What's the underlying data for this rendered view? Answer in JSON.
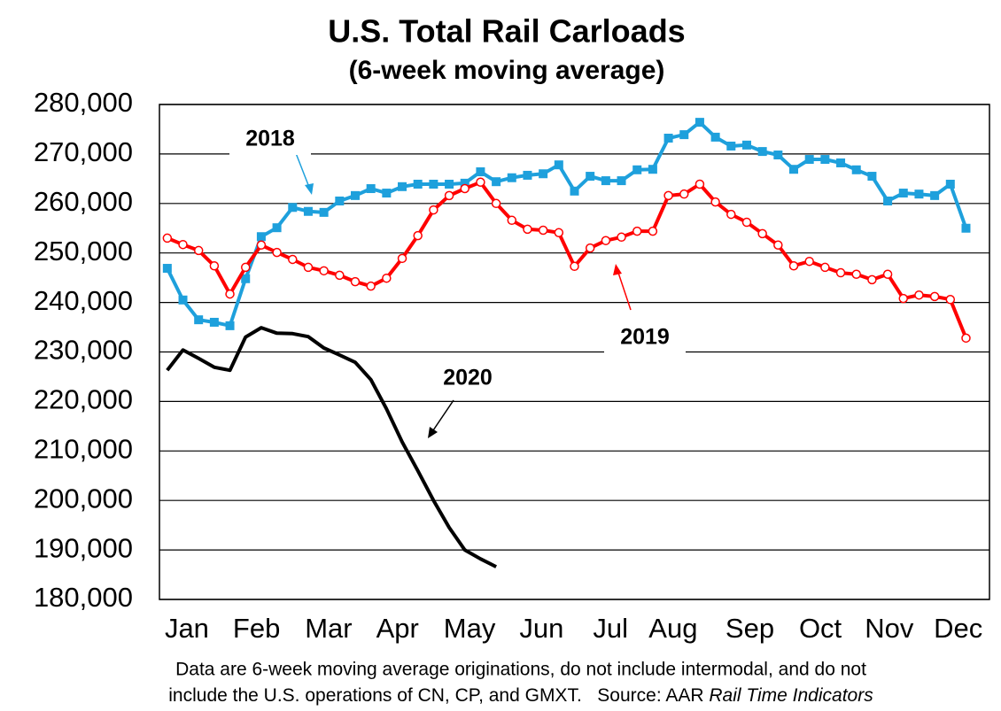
{
  "chart_data": {
    "type": "line",
    "title": "U.S. Total Rail Carloads",
    "subtitle": "(6-week moving average)",
    "x": [
      1,
      2,
      3,
      4,
      5,
      6,
      7,
      8,
      9,
      10,
      11,
      12,
      13,
      14,
      15,
      16,
      17,
      18,
      19,
      20,
      21,
      22,
      23,
      24,
      25,
      26,
      27,
      28,
      29,
      30,
      31,
      32,
      33,
      34,
      35,
      36,
      37,
      38,
      39,
      40,
      41,
      42,
      43,
      44,
      45,
      46,
      47,
      48,
      49,
      50,
      51,
      52
    ],
    "xlim": [
      0.5,
      53.5
    ],
    "xticks": [
      {
        "value": 2.25,
        "label": "Jan"
      },
      {
        "value": 6.7,
        "label": "Feb"
      },
      {
        "value": 11.3,
        "label": "Mar"
      },
      {
        "value": 15.7,
        "label": "Apr"
      },
      {
        "value": 20.3,
        "label": "May"
      },
      {
        "value": 24.9,
        "label": "Jun"
      },
      {
        "value": 29.3,
        "label": "Jul"
      },
      {
        "value": 33.3,
        "label": "Aug"
      },
      {
        "value": 38.2,
        "label": "Sep"
      },
      {
        "value": 42.7,
        "label": "Oct"
      },
      {
        "value": 47.1,
        "label": "Nov"
      },
      {
        "value": 51.5,
        "label": "Dec"
      }
    ],
    "ylim": [
      180000,
      280000
    ],
    "yticks": [
      {
        "value": 180000,
        "label": "180,000"
      },
      {
        "value": 190000,
        "label": "190,000"
      },
      {
        "value": 200000,
        "label": "200,000"
      },
      {
        "value": 210000,
        "label": "210,000"
      },
      {
        "value": 220000,
        "label": "220,000"
      },
      {
        "value": 230000,
        "label": "230,000"
      },
      {
        "value": 240000,
        "label": "240,000"
      },
      {
        "value": 250000,
        "label": "250,000"
      },
      {
        "value": 260000,
        "label": "260,000"
      },
      {
        "value": 270000,
        "label": "270,000"
      },
      {
        "value": 280000,
        "label": "280,000"
      }
    ],
    "grid": true,
    "series": [
      {
        "name": "2018",
        "color": "#1ea0dc",
        "marker": "square",
        "values": [
          246900,
          240500,
          236500,
          236000,
          235300,
          244800,
          253300,
          255100,
          259200,
          258400,
          258200,
          260500,
          261600,
          263000,
          262100,
          263400,
          263900,
          263900,
          263900,
          264100,
          266400,
          264400,
          265200,
          265700,
          266000,
          267800,
          262500,
          265500,
          264600,
          264600,
          266800,
          266900,
          273200,
          273900,
          276400,
          273400,
          271600,
          271800,
          270500,
          269800,
          266900,
          268900,
          268900,
          268200,
          266800,
          265500,
          260500,
          262100,
          261900,
          261600,
          263900,
          255000
        ]
      },
      {
        "name": "2019",
        "color": "#ff0000",
        "marker": "circle",
        "values": [
          253000,
          251700,
          250500,
          247400,
          241700,
          247100,
          251600,
          250100,
          248700,
          247100,
          246400,
          245500,
          244200,
          243300,
          244900,
          248900,
          253500,
          258700,
          261600,
          263000,
          264300,
          260000,
          256600,
          254800,
          254600,
          254100,
          247300,
          251000,
          252500,
          253200,
          254400,
          254400,
          261600,
          261900,
          263900,
          260300,
          257800,
          256200,
          253900,
          251600,
          247400,
          248300,
          247100,
          246000,
          245700,
          244600,
          245700,
          240800,
          241500,
          241200,
          240600,
          232800
        ]
      },
      {
        "name": "2020",
        "color": "#000000",
        "marker": "none",
        "values": [
          226300,
          230400,
          228700,
          226900,
          226300,
          233000,
          234900,
          233800,
          233700,
          233100,
          230800,
          229400,
          227900,
          224400,
          218500,
          211800,
          206000,
          200000,
          194500,
          190000,
          188200,
          186600,
          null,
          null,
          null,
          null,
          null,
          null,
          null,
          null,
          null,
          null,
          null,
          null,
          null,
          null,
          null,
          null,
          null,
          null,
          null,
          null,
          null,
          null,
          null,
          null,
          null,
          null,
          null,
          null,
          null,
          null
        ]
      }
    ],
    "note": [
      "Data are 6-week moving average originations, do not include intermodal, and do not",
      "include the U.S. operations of CN, CP, and GMXT.   Source: AAR ",
      "Rail Time Indicators"
    ]
  }
}
